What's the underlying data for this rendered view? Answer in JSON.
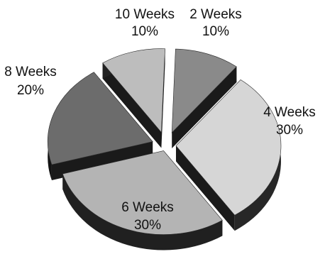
{
  "chart_data": {
    "type": "pie",
    "title": "",
    "style": "3d-exploded",
    "categories": [
      "2 Weeks",
      "4 Weeks",
      "6 Weeks",
      "8 Weeks",
      "10 Weeks"
    ],
    "values": [
      10,
      30,
      30,
      20,
      10
    ],
    "percent_labels": [
      "10%",
      "30%",
      "30%",
      "20%",
      "10%"
    ],
    "colors": [
      "#8a8a8a",
      "#d6d6d6",
      "#b4b4b4",
      "#6c6c6c",
      "#bdbdbd"
    ],
    "side_color": "#1a1a1a",
    "legend": "none"
  }
}
